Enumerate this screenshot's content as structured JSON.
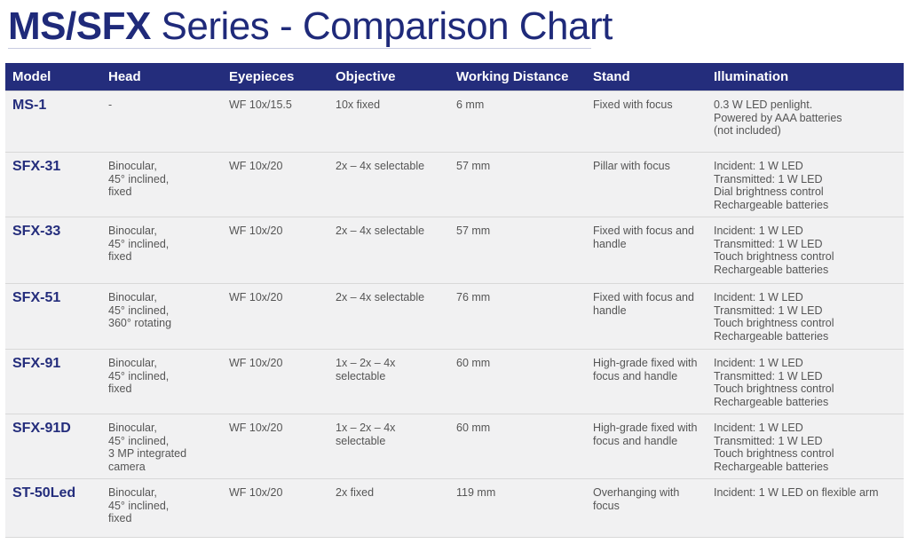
{
  "title": {
    "bold": "MS/SFX",
    "rest": " Series - Comparison Chart"
  },
  "headers": [
    "Model",
    "Head",
    "Eyepieces",
    "Objective",
    "Working Distance",
    "Stand",
    "Illumination"
  ],
  "rows": [
    {
      "model": "MS-1",
      "head": "-",
      "eyepieces": "WF 10x/15.5",
      "objective": "10x fixed",
      "distance": "6 mm",
      "stand": "Fixed with focus",
      "illumination": "0.3 W LED penlight.\nPowered by AAA batteries\n(not included)"
    },
    {
      "model": "SFX-31",
      "head": "Binocular,\n45° inclined,\nfixed",
      "eyepieces": "WF 10x/20",
      "objective": "2x – 4x selectable",
      "distance": "57 mm",
      "stand": "Pillar with focus",
      "illumination": "Incident: 1 W LED\nTransmitted: 1 W LED\nDial brightness control\nRechargeable batteries"
    },
    {
      "model": "SFX-33",
      "head": "Binocular,\n45° inclined,\nfixed",
      "eyepieces": "WF 10x/20",
      "objective": "2x – 4x selectable",
      "distance": "57 mm",
      "stand": "Fixed with focus and\nhandle",
      "illumination": "Incident: 1 W LED\nTransmitted: 1 W LED\nTouch brightness control\nRechargeable batteries"
    },
    {
      "model": "SFX-51",
      "head": "Binocular,\n45° inclined,\n360° rotating",
      "eyepieces": "WF 10x/20",
      "objective": "2x – 4x selectable",
      "distance": "76 mm",
      "stand": "Fixed with focus and\nhandle",
      "illumination": "Incident: 1 W LED\nTransmitted: 1 W LED\nTouch brightness control\nRechargeable batteries"
    },
    {
      "model": "SFX-91",
      "head": "Binocular,\n45° inclined,\nfixed",
      "eyepieces": "WF 10x/20",
      "objective": "1x – 2x – 4x\nselectable",
      "distance": "60 mm",
      "stand": "High-grade fixed with\nfocus and handle",
      "illumination": "Incident: 1 W LED\nTransmitted: 1 W LED\nTouch brightness control\nRechargeable batteries"
    },
    {
      "model": "SFX-91D",
      "head": "Binocular,\n45° inclined,\n3 MP integrated\ncamera",
      "eyepieces": "WF 10x/20",
      "objective": "1x – 2x – 4x\nselectable",
      "distance": "60 mm",
      "stand": "High-grade fixed with\nfocus and handle",
      "illumination": "Incident: 1 W LED\nTransmitted: 1 W LED\nTouch brightness control\nRechargeable batteries"
    },
    {
      "model": "ST-50Led",
      "head": "Binocular,\n45° inclined,\nfixed",
      "eyepieces": "WF 10x/20",
      "objective": "2x fixed",
      "distance": "119 mm",
      "stand": "Overhanging with\nfocus",
      "illumination": "Incident: 1 W LED on flexible arm"
    }
  ]
}
